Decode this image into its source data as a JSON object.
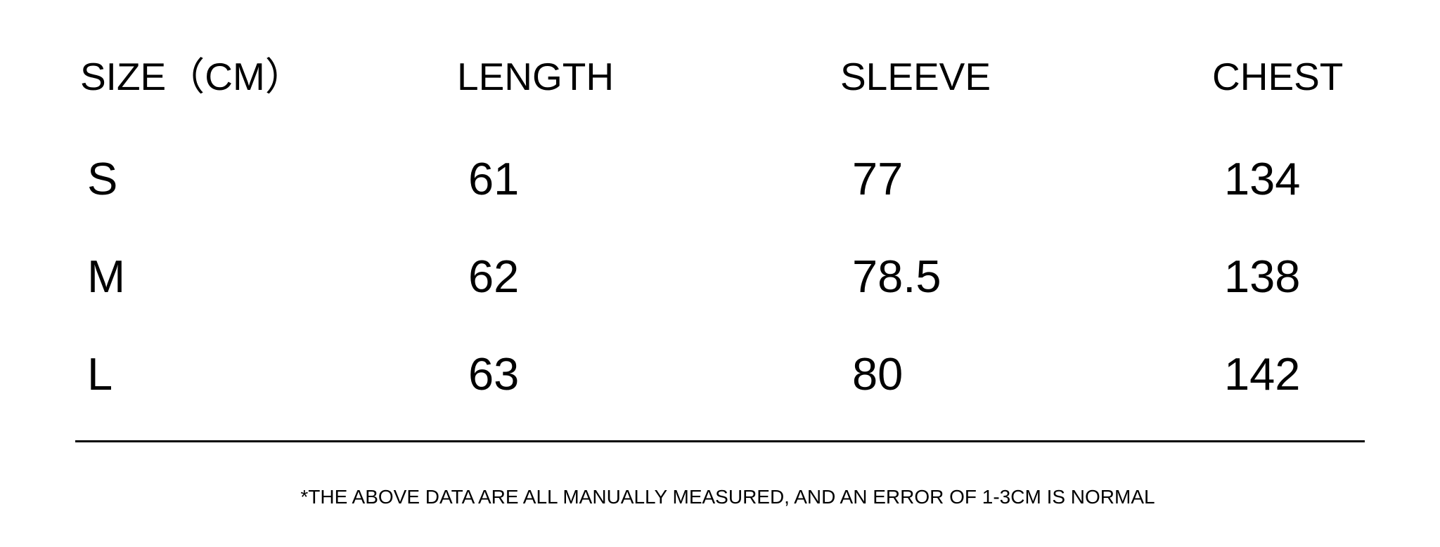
{
  "headers": [
    "SIZE（CM）",
    "LENGTH",
    "SLEEVE",
    "CHEST"
  ],
  "rows": [
    [
      "S",
      "61",
      "77",
      "134"
    ],
    [
      "M",
      "62",
      "78.5",
      "138"
    ],
    [
      "L",
      "63",
      "80",
      "142"
    ]
  ],
  "note": "*THE ABOVE DATA ARE ALL MANUALLY MEASURED, AND AN ERROR OF 1-3CM IS NORMAL"
}
